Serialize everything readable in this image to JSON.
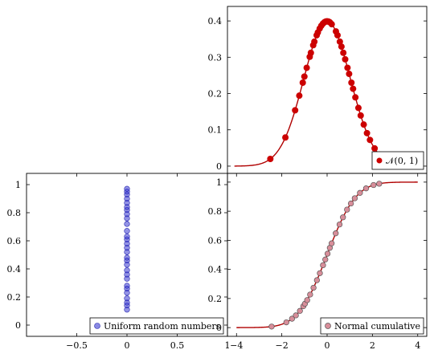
{
  "chart_data": [
    {
      "type": "scatter",
      "panel": "top-right",
      "xlim": [
        -4.3,
        4.3
      ],
      "ylim": [
        -0.02,
        0.44
      ],
      "x_ticks": [],
      "y_ticks": [
        "0",
        "0.1",
        "0.2",
        "0.3",
        "0.4"
      ],
      "y_tick_values": [
        0,
        0.1,
        0.2,
        0.3,
        0.4
      ],
      "curve": {
        "function": "normal-pdf",
        "mu": 0,
        "sigma": 1,
        "x_range": [
          -4,
          4
        ],
        "color": "#b00000"
      },
      "points": [
        {
          "x": -2.45,
          "y": 0.0198
        },
        {
          "x": -1.8,
          "y": 0.079
        },
        {
          "x": -1.38,
          "y": 0.1539
        },
        {
          "x": -1.2,
          "y": 0.1942
        },
        {
          "x": -1.05,
          "y": 0.2299
        },
        {
          "x": -0.98,
          "y": 0.2468
        },
        {
          "x": -0.88,
          "y": 0.2709
        },
        {
          "x": -0.75,
          "y": 0.3011
        },
        {
          "x": -0.7,
          "y": 0.3123
        },
        {
          "x": -0.6,
          "y": 0.3332
        },
        {
          "x": -0.55,
          "y": 0.3429
        },
        {
          "x": -0.45,
          "y": 0.3605
        },
        {
          "x": -0.4,
          "y": 0.3683
        },
        {
          "x": -0.32,
          "y": 0.379
        },
        {
          "x": -0.25,
          "y": 0.3867
        },
        {
          "x": -0.18,
          "y": 0.3925
        },
        {
          "x": -0.12,
          "y": 0.3961
        },
        {
          "x": -0.08,
          "y": 0.3977
        },
        {
          "x": -0.03,
          "y": 0.3988
        },
        {
          "x": 0.02,
          "y": 0.3989
        },
        {
          "x": 0.07,
          "y": 0.398
        },
        {
          "x": 0.12,
          "y": 0.3961
        },
        {
          "x": 0.2,
          "y": 0.391
        },
        {
          "x": 0.38,
          "y": 0.3712
        },
        {
          "x": 0.45,
          "y": 0.3605
        },
        {
          "x": 0.55,
          "y": 0.3429
        },
        {
          "x": 0.62,
          "y": 0.3292
        },
        {
          "x": 0.7,
          "y": 0.3123
        },
        {
          "x": 0.78,
          "y": 0.2943
        },
        {
          "x": 0.88,
          "y": 0.2709
        },
        {
          "x": 0.95,
          "y": 0.2541
        },
        {
          "x": 1.05,
          "y": 0.2299
        },
        {
          "x": 1.12,
          "y": 0.2131
        },
        {
          "x": 1.22,
          "y": 0.1895
        },
        {
          "x": 1.35,
          "y": 0.1604
        },
        {
          "x": 1.45,
          "y": 0.1394
        },
        {
          "x": 1.58,
          "y": 0.1145
        },
        {
          "x": 1.72,
          "y": 0.0909
        },
        {
          "x": 1.85,
          "y": 0.0721
        },
        {
          "x": 2.05,
          "y": 0.0488
        },
        {
          "x": 2.25,
          "y": 0.0317
        }
      ],
      "point_color": "#cc0000",
      "legend": {
        "label": "𝒩(0, 1)",
        "position": "bottom-right"
      }
    },
    {
      "type": "scatter",
      "panel": "bottom-left",
      "xlim": [
        -1,
        1
      ],
      "ylim": [
        -0.08,
        1.08
      ],
      "x_ticks": [
        "−0.5",
        "0",
        "0.5",
        "1"
      ],
      "x_tick_values": [
        -0.5,
        0,
        0.5,
        1
      ],
      "y_ticks": [
        "0",
        "0.2",
        "0.4",
        "0.6",
        "0.8",
        "1"
      ],
      "y_tick_values": [
        0,
        0.2,
        0.4,
        0.6,
        0.8,
        1
      ],
      "points": [
        {
          "x": 0,
          "y": 0.11
        },
        {
          "x": 0,
          "y": 0.14
        },
        {
          "x": 0,
          "y": 0.16
        },
        {
          "x": 0,
          "y": 0.19
        },
        {
          "x": 0,
          "y": 0.23
        },
        {
          "x": 0,
          "y": 0.26
        },
        {
          "x": 0,
          "y": 0.28
        },
        {
          "x": 0,
          "y": 0.33
        },
        {
          "x": 0,
          "y": 0.36
        },
        {
          "x": 0,
          "y": 0.39
        },
        {
          "x": 0,
          "y": 0.43
        },
        {
          "x": 0,
          "y": 0.46
        },
        {
          "x": 0,
          "y": 0.48
        },
        {
          "x": 0,
          "y": 0.52
        },
        {
          "x": 0,
          "y": 0.55
        },
        {
          "x": 0,
          "y": 0.58
        },
        {
          "x": 0,
          "y": 0.61
        },
        {
          "x": 0,
          "y": 0.63
        },
        {
          "x": 0,
          "y": 0.67
        },
        {
          "x": 0,
          "y": 0.72
        },
        {
          "x": 0,
          "y": 0.76
        },
        {
          "x": 0,
          "y": 0.79
        },
        {
          "x": 0,
          "y": 0.82
        },
        {
          "x": 0,
          "y": 0.84
        },
        {
          "x": 0,
          "y": 0.87
        },
        {
          "x": 0,
          "y": 0.9
        },
        {
          "x": 0,
          "y": 0.93
        },
        {
          "x": 0,
          "y": 0.95
        },
        {
          "x": 0,
          "y": 0.97
        }
      ],
      "point_color": "#3a3ad0",
      "legend": {
        "label": "Uniform random numbers",
        "position": "bottom-right"
      }
    },
    {
      "type": "scatter",
      "panel": "bottom-right",
      "xlim": [
        -4.4,
        4.4
      ],
      "ylim": [
        -0.06,
        1.06
      ],
      "x_ticks": [
        "−4",
        "−2",
        "0",
        "2",
        "4"
      ],
      "x_tick_values": [
        -4,
        -2,
        0,
        2,
        4
      ],
      "y_ticks": [
        "0",
        "0.2",
        "0.4",
        "0.6",
        "0.8",
        "1"
      ],
      "y_tick_values": [
        0,
        0.2,
        0.4,
        0.6,
        0.8,
        1
      ],
      "curve": {
        "function": "normal-cdf",
        "mu": 0,
        "sigma": 1,
        "x_range": [
          -4,
          4
        ],
        "color": "#b00000"
      },
      "points": [
        {
          "x": -2.45,
          "y": 0.007
        },
        {
          "x": -1.8,
          "y": 0.036
        },
        {
          "x": -1.55,
          "y": 0.061
        },
        {
          "x": -1.38,
          "y": 0.084
        },
        {
          "x": -1.2,
          "y": 0.115
        },
        {
          "x": -1.05,
          "y": 0.147
        },
        {
          "x": -0.98,
          "y": 0.164
        },
        {
          "x": -0.88,
          "y": 0.189
        },
        {
          "x": -0.75,
          "y": 0.227
        },
        {
          "x": -0.6,
          "y": 0.274
        },
        {
          "x": -0.45,
          "y": 0.326
        },
        {
          "x": -0.32,
          "y": 0.374
        },
        {
          "x": -0.18,
          "y": 0.429
        },
        {
          "x": -0.08,
          "y": 0.468
        },
        {
          "x": 0.02,
          "y": 0.508
        },
        {
          "x": 0.12,
          "y": 0.548
        },
        {
          "x": 0.2,
          "y": 0.579
        },
        {
          "x": 0.38,
          "y": 0.648
        },
        {
          "x": 0.55,
          "y": 0.709
        },
        {
          "x": 0.7,
          "y": 0.758
        },
        {
          "x": 0.88,
          "y": 0.811
        },
        {
          "x": 1.05,
          "y": 0.853
        },
        {
          "x": 1.22,
          "y": 0.889
        },
        {
          "x": 1.45,
          "y": 0.926
        },
        {
          "x": 1.72,
          "y": 0.957
        },
        {
          "x": 2.05,
          "y": 0.98
        },
        {
          "x": 2.3,
          "y": 0.989
        }
      ],
      "point_color": "#d88e9a",
      "legend": {
        "label": "Normal cumulative",
        "position": "bottom-right"
      }
    }
  ]
}
